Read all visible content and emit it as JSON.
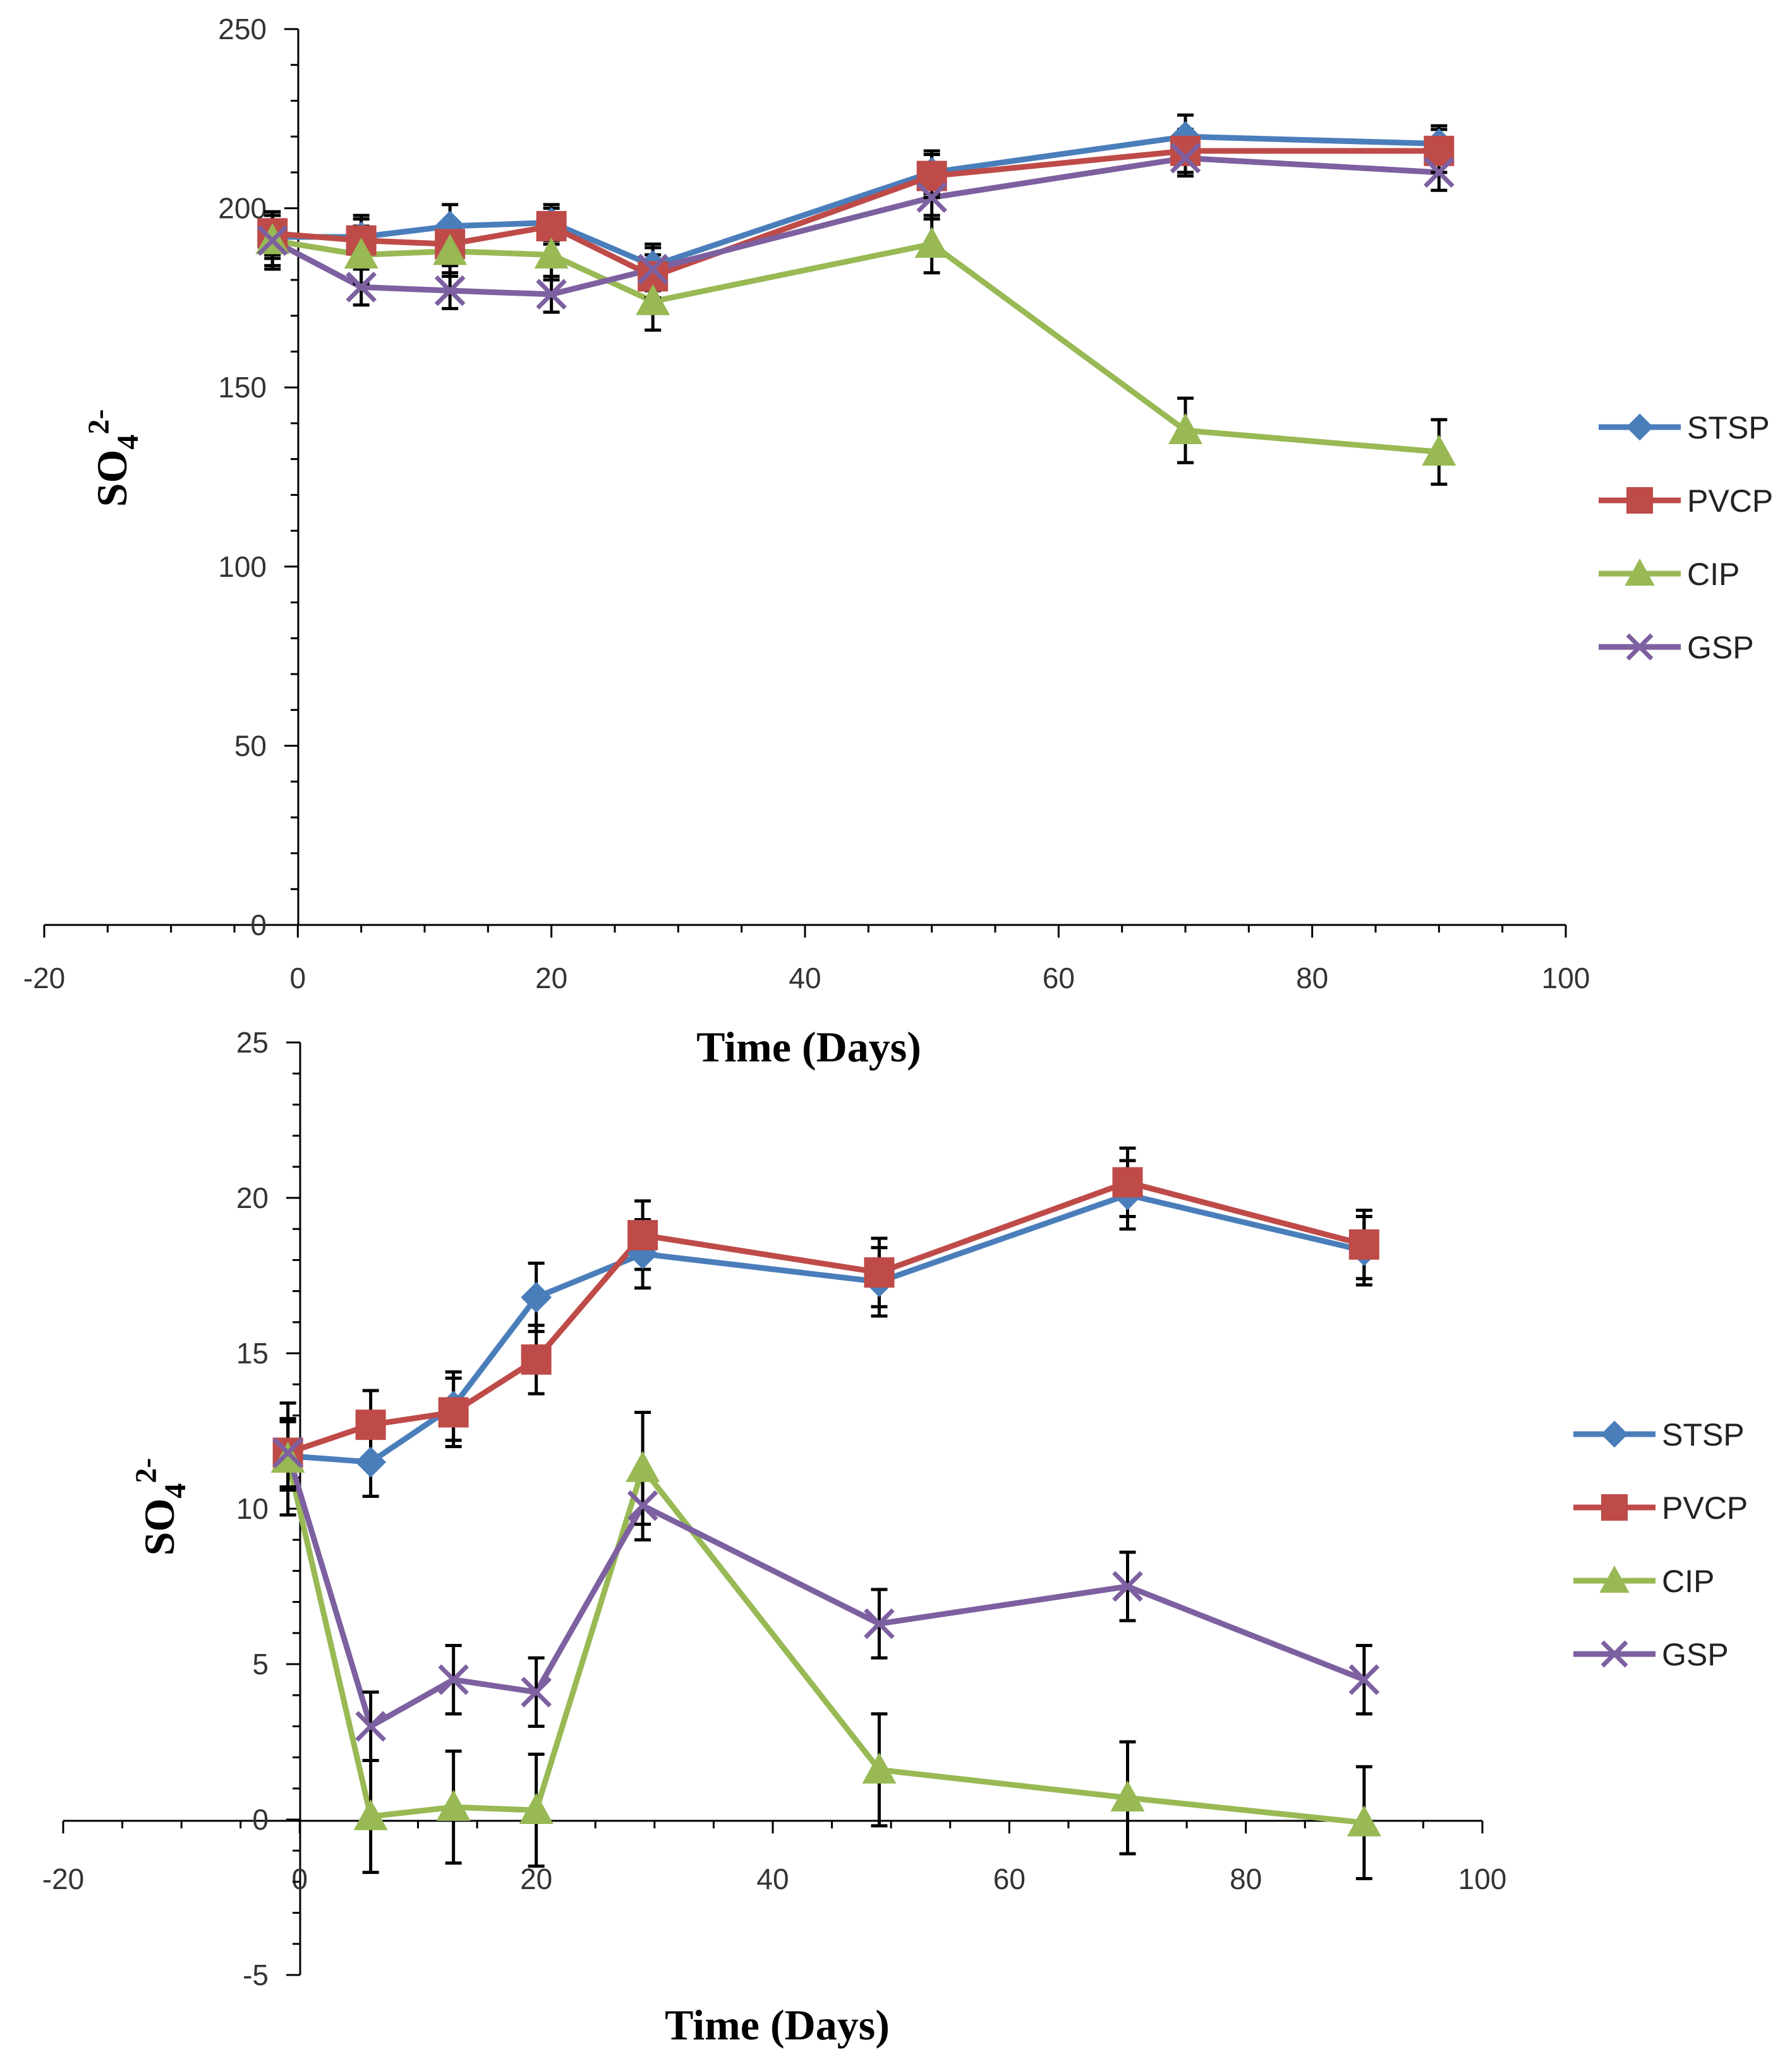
{
  "chart_data": [
    {
      "type": "line",
      "title": "",
      "xlabel": "Time (Days)",
      "ylabel": "SO4 2-",
      "ylabel_main": "SO",
      "ylabel_sub": "4",
      "ylabel_sup": "2-",
      "xlim": [
        -20,
        100
      ],
      "ylim": [
        0,
        250
      ],
      "xticks": [
        -20,
        0,
        20,
        40,
        60,
        80,
        100
      ],
      "yticks": [
        0,
        50,
        100,
        150,
        200,
        250
      ],
      "grid": false,
      "legend_position": "right",
      "x": [
        -2,
        5,
        12,
        20,
        28,
        50,
        70,
        90
      ],
      "series": [
        {
          "name": "STSP",
          "color": "#4a7ebb",
          "marker": "diamond",
          "values": [
            192,
            192,
            195,
            196,
            184,
            210,
            220,
            218
          ],
          "error": [
            6,
            6,
            6,
            5,
            6,
            6,
            6,
            5
          ]
        },
        {
          "name": "PVCP",
          "color": "#be4b48",
          "marker": "square",
          "values": [
            193,
            191,
            190,
            195,
            181,
            209,
            216,
            216
          ],
          "error": [
            6,
            6,
            6,
            5,
            6,
            6,
            6,
            6
          ]
        },
        {
          "name": "CIP",
          "color": "#98b954",
          "marker": "triangle",
          "values": [
            191,
            187,
            188,
            187,
            174,
            190,
            138,
            132
          ],
          "error": [
            8,
            8,
            7,
            7,
            8,
            8,
            9,
            9
          ]
        },
        {
          "name": "GSP",
          "color": "#7d60a0",
          "marker": "x",
          "values": [
            191,
            178,
            177,
            176,
            183,
            203,
            214,
            210
          ],
          "error": [
            7,
            5,
            5,
            5,
            6,
            6,
            5,
            5
          ]
        }
      ]
    },
    {
      "type": "line",
      "title": "",
      "xlabel": "Time (Days)",
      "ylabel": "SO4 2-",
      "ylabel_main": "SO",
      "ylabel_sub": "4",
      "ylabel_sup": "2-",
      "xlim": [
        -20,
        100
      ],
      "ylim": [
        -5,
        25
      ],
      "xticks": [
        -20,
        0,
        20,
        40,
        60,
        80,
        100
      ],
      "yticks": [
        -5,
        0,
        5,
        10,
        15,
        20,
        25
      ],
      "grid": false,
      "legend_position": "right",
      "x": [
        -1,
        6,
        13,
        20,
        29,
        49,
        70,
        90
      ],
      "series": [
        {
          "name": "STSP",
          "color": "#4a7ebb",
          "marker": "diamond",
          "values": [
            11.7,
            11.5,
            13.3,
            16.8,
            18.2,
            17.3,
            20.1,
            18.3
          ],
          "error": [
            1.1,
            1.1,
            1.1,
            1.1,
            1.1,
            1.1,
            1.1,
            1.1
          ]
        },
        {
          "name": "PVCP",
          "color": "#be4b48",
          "marker": "square",
          "values": [
            11.8,
            12.7,
            13.1,
            14.8,
            18.8,
            17.6,
            20.5,
            18.5
          ],
          "error": [
            1.1,
            1.1,
            1.1,
            1.1,
            1.1,
            1.1,
            1.1,
            1.1
          ]
        },
        {
          "name": "CIP",
          "color": "#98b954",
          "marker": "triangle",
          "values": [
            11.6,
            0.1,
            0.4,
            0.3,
            11.3,
            1.6,
            0.7,
            -0.1
          ],
          "error": [
            1.8,
            1.8,
            1.8,
            1.8,
            1.8,
            1.8,
            1.8,
            1.8
          ]
        },
        {
          "name": "GSP",
          "color": "#7d60a0",
          "marker": "x",
          "values": [
            11.8,
            3.0,
            4.5,
            4.1,
            10.1,
            6.3,
            7.5,
            4.5
          ],
          "error": [
            1.1,
            1.1,
            1.1,
            1.1,
            1.1,
            1.1,
            1.1,
            1.1
          ]
        }
      ]
    }
  ]
}
